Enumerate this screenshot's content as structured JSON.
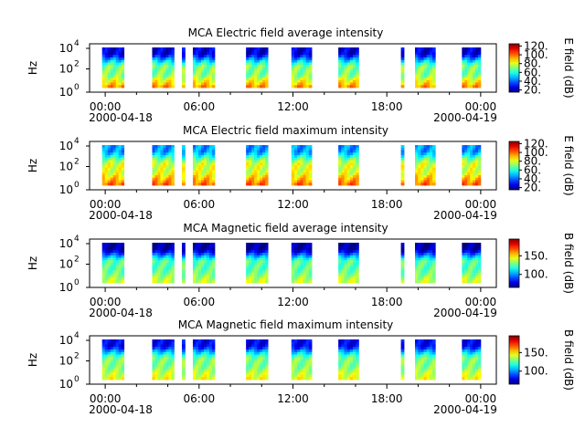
{
  "chart_data": [
    {
      "type": "heatmap",
      "title": "MCA  Electric field average intensity",
      "ylabel": "Hz",
      "y_scale": "log",
      "ylim": [
        1,
        20000
      ],
      "y_ticks": [
        "10",
        "10",
        "10"
      ],
      "y_tick_exponents": [
        "0",
        "2",
        "4"
      ],
      "x_ticks": [
        "00:00",
        "06:00",
        "12:00",
        "18:00",
        "00:00"
      ],
      "x_dates": [
        "2000-04-18",
        "2000-04-19"
      ],
      "colorbar": {
        "label": "E field (dB)",
        "ticks": [
          "20.",
          "40.",
          "60.",
          "80.",
          "100.",
          "120."
        ],
        "range": [
          15,
          125
        ]
      },
      "colormap": "rainbow",
      "data_intervals_hours": [
        [
          -0.2,
          1.2
        ],
        [
          3.0,
          4.4
        ],
        [
          4.9,
          5.1
        ],
        [
          5.6,
          7.0
        ],
        [
          9.0,
          10.4
        ],
        [
          11.9,
          13.2
        ],
        [
          14.9,
          16.2
        ],
        [
          18.9,
          19.1
        ],
        [
          19.8,
          21.1
        ],
        [
          22.8,
          24.0
        ]
      ],
      "intensity_profile": {
        "high_freq": 25,
        "mid_freq": 70,
        "low_freq": 95
      }
    },
    {
      "type": "heatmap",
      "title": "MCA  Electric field maximum intensity",
      "ylabel": "Hz",
      "y_scale": "log",
      "ylim": [
        1,
        20000
      ],
      "y_ticks": [
        "10",
        "10",
        "10"
      ],
      "y_tick_exponents": [
        "0",
        "2",
        "4"
      ],
      "x_ticks": [
        "00:00",
        "06:00",
        "12:00",
        "18:00",
        "00:00"
      ],
      "x_dates": [
        "2000-04-18",
        "2000-04-19"
      ],
      "colorbar": {
        "label": "E field (dB)",
        "ticks": [
          "20.",
          "40.",
          "60.",
          "80.",
          "100.",
          "120."
        ],
        "range": [
          15,
          125
        ]
      },
      "colormap": "rainbow",
      "data_intervals_hours": [
        [
          -0.2,
          1.2
        ],
        [
          3.0,
          4.4
        ],
        [
          4.9,
          5.1
        ],
        [
          5.6,
          7.0
        ],
        [
          9.0,
          10.4
        ],
        [
          11.9,
          13.2
        ],
        [
          14.9,
          16.2
        ],
        [
          18.9,
          19.1
        ],
        [
          19.8,
          21.1
        ],
        [
          22.8,
          24.0
        ]
      ],
      "intensity_profile": {
        "high_freq": 45,
        "mid_freq": 80,
        "low_freq": 100
      }
    },
    {
      "type": "heatmap",
      "title": "MCA  Magnetic field average intensity",
      "ylabel": "Hz",
      "y_scale": "log",
      "ylim": [
        1,
        20000
      ],
      "y_ticks": [
        "10",
        "10",
        "10"
      ],
      "y_tick_exponents": [
        "0",
        "2",
        "4"
      ],
      "x_ticks": [
        "00:00",
        "06:00",
        "12:00",
        "18:00",
        "00:00"
      ],
      "x_dates": [
        "2000-04-18",
        "2000-04-19"
      ],
      "colorbar": {
        "label": "B field (dB)",
        "ticks": [
          "100.",
          "150."
        ],
        "range": [
          65,
          195
        ]
      },
      "colormap": "rainbow",
      "data_intervals_hours": [
        [
          -0.2,
          1.2
        ],
        [
          3.0,
          4.4
        ],
        [
          4.9,
          5.1
        ],
        [
          5.6,
          7.0
        ],
        [
          9.0,
          10.4
        ],
        [
          11.9,
          13.2
        ],
        [
          14.9,
          16.2
        ],
        [
          18.9,
          19.1
        ],
        [
          19.8,
          21.1
        ],
        [
          22.8,
          24.0
        ]
      ],
      "intensity_profile": {
        "high_freq": 70,
        "mid_freq": 125,
        "low_freq": 140
      }
    },
    {
      "type": "heatmap",
      "title": "MCA  Magnetic field maximum intensity",
      "ylabel": "Hz",
      "y_scale": "log",
      "ylim": [
        1,
        20000
      ],
      "y_ticks": [
        "10",
        "10",
        "10"
      ],
      "y_tick_exponents": [
        "0",
        "2",
        "4"
      ],
      "x_ticks": [
        "00:00",
        "06:00",
        "12:00",
        "18:00",
        "00:00"
      ],
      "x_dates": [
        "2000-04-18",
        "2000-04-19"
      ],
      "colorbar": {
        "label": "B field (dB)",
        "ticks": [
          "100.",
          "150."
        ],
        "range": [
          65,
          195
        ]
      },
      "colormap": "rainbow",
      "data_intervals_hours": [
        [
          -0.2,
          1.2
        ],
        [
          3.0,
          4.4
        ],
        [
          4.9,
          5.1
        ],
        [
          5.6,
          7.0
        ],
        [
          9.0,
          10.4
        ],
        [
          11.9,
          13.2
        ],
        [
          14.9,
          16.2
        ],
        [
          18.9,
          19.1
        ],
        [
          19.8,
          21.1
        ],
        [
          22.8,
          24.0
        ]
      ],
      "intensity_profile": {
        "high_freq": 80,
        "mid_freq": 130,
        "low_freq": 145
      }
    }
  ]
}
